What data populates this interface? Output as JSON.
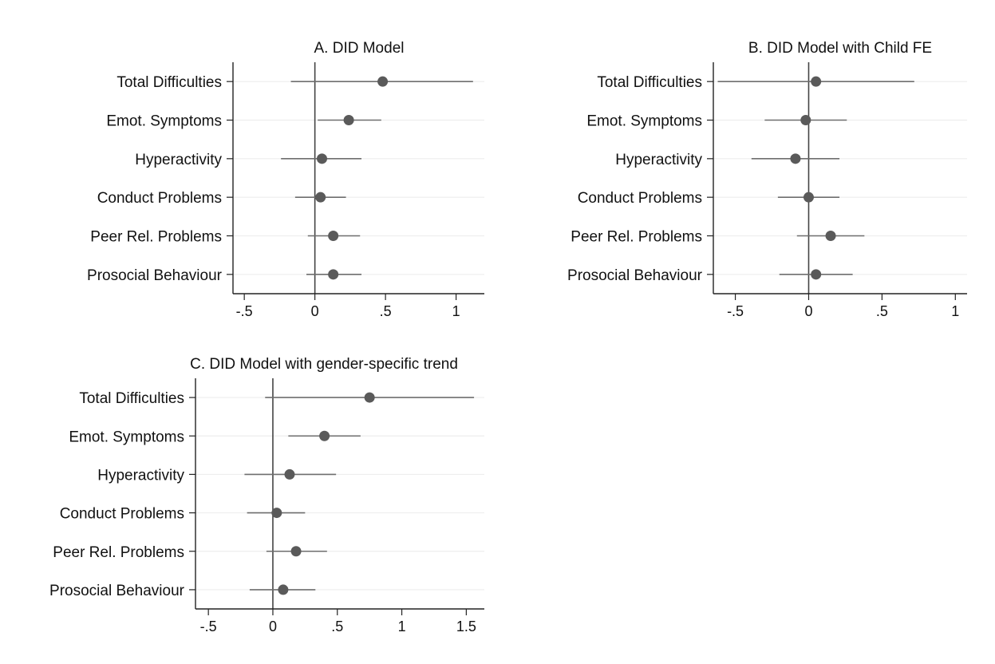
{
  "colors": {
    "background": "#ffffff",
    "marker": "#5a5a5a",
    "ci_line": "#6e6e6e",
    "axis": "#222222",
    "grid": "#eeeeee",
    "text": "#111111"
  },
  "chart_data": [
    {
      "type": "scatter",
      "title": "A. DID Model",
      "xlabel": "",
      "ylabel": "",
      "categories": [
        "Total Difficulties",
        "Emot. Symptoms",
        "Hyperactivity",
        "Conduct Problems",
        "Peer Rel. Problems",
        "Prosocial Behaviour"
      ],
      "estimates": [
        0.48,
        0.24,
        0.05,
        0.04,
        0.13,
        0.13
      ],
      "ci_low": [
        -0.17,
        0.02,
        -0.24,
        -0.14,
        -0.05,
        -0.06
      ],
      "ci_high": [
        1.12,
        0.47,
        0.33,
        0.22,
        0.32,
        0.33
      ],
      "xlim": [
        -0.58,
        1.2
      ],
      "xticks": [
        -0.5,
        0,
        0.5,
        1
      ],
      "xtick_labels": [
        "-.5",
        "0",
        ".5",
        "1"
      ],
      "reference_line": 0,
      "grid": true
    },
    {
      "type": "scatter",
      "title": "B. DID Model with Child FE",
      "xlabel": "",
      "ylabel": "",
      "categories": [
        "Total Difficulties",
        "Emot. Symptoms",
        "Hyperactivity",
        "Conduct Problems",
        "Peer Rel. Problems",
        "Prosocial Behaviour"
      ],
      "estimates": [
        0.05,
        -0.02,
        -0.09,
        0.0,
        0.15,
        0.05
      ],
      "ci_low": [
        -0.62,
        -0.3,
        -0.39,
        -0.21,
        -0.08,
        -0.2
      ],
      "ci_high": [
        0.72,
        0.26,
        0.21,
        0.21,
        0.38,
        0.3
      ],
      "xlim": [
        -0.65,
        1.08
      ],
      "xticks": [
        -0.5,
        0,
        0.5,
        1
      ],
      "xtick_labels": [
        "-.5",
        "0",
        ".5",
        "1"
      ],
      "reference_line": 0,
      "grid": true
    },
    {
      "type": "scatter",
      "title": "C. DID Model with gender-specific trend",
      "xlabel": "",
      "ylabel": "",
      "categories": [
        "Total Difficulties",
        "Emot. Symptoms",
        "Hyperactivity",
        "Conduct Problems",
        "Peer Rel. Problems",
        "Prosocial Behaviour"
      ],
      "estimates": [
        0.75,
        0.4,
        0.13,
        0.03,
        0.18,
        0.08
      ],
      "ci_low": [
        -0.06,
        0.12,
        -0.22,
        -0.2,
        -0.05,
        -0.18
      ],
      "ci_high": [
        1.56,
        0.68,
        0.49,
        0.25,
        0.42,
        0.33
      ],
      "xlim": [
        -0.6,
        1.64
      ],
      "xticks": [
        -0.5,
        0,
        0.5,
        1,
        1.5
      ],
      "xtick_labels": [
        "-.5",
        "0",
        ".5",
        "1",
        "1.5"
      ],
      "reference_line": 0,
      "grid": true
    }
  ]
}
